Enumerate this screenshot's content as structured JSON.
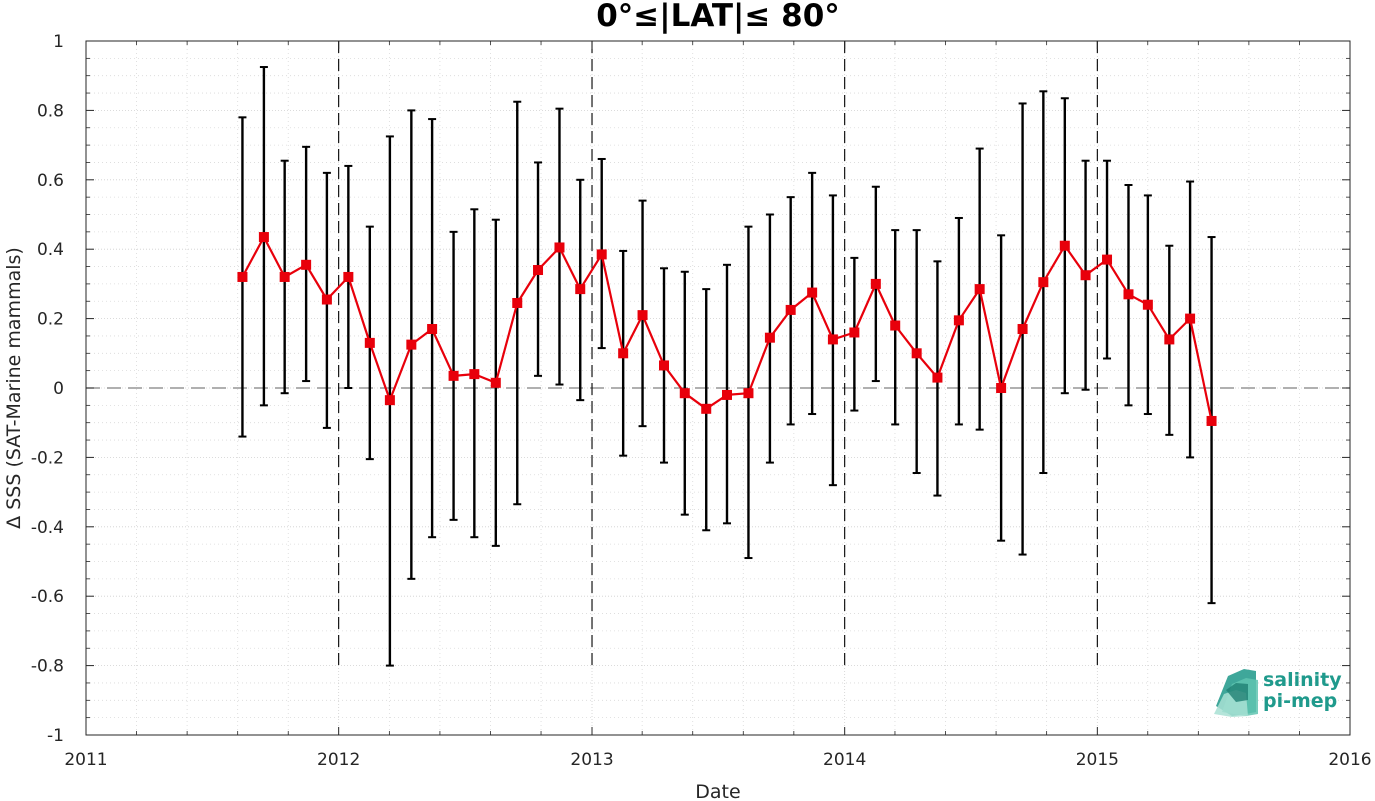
{
  "chart_data": {
    "type": "line",
    "title": "0°≤|LAT|≤ 80°",
    "xlabel": "Date",
    "ylabel": "Δ SSS (SAT-Marine mammals)",
    "xlim": [
      "2011-01-01",
      "2016-01-01"
    ],
    "ylim": [
      -1,
      1
    ],
    "x_ticks": [
      "2011",
      "2012",
      "2013",
      "2014",
      "2015",
      "2016"
    ],
    "y_ticks": [
      "1",
      "0.8",
      "0.6",
      "0.4",
      "0.2",
      "0",
      "-0.2",
      "-0.4",
      "-0.6",
      "-0.8",
      "-1"
    ],
    "grid": true,
    "minor_grid": true,
    "reference_line": 0,
    "year_separators": [
      "2012-01-01",
      "2013-01-01",
      "2014-01-01",
      "2015-01-01"
    ],
    "series": [
      {
        "color": "#e8000b",
        "marker": "square",
        "points": [
          {
            "x": "2011-08-15",
            "y": 0.32,
            "ylow": -0.14,
            "yhigh": 0.78
          },
          {
            "x": "2011-09-15",
            "y": 0.435,
            "ylow": -0.05,
            "yhigh": 0.925
          },
          {
            "x": "2011-10-15",
            "y": 0.32,
            "ylow": -0.015,
            "yhigh": 0.655
          },
          {
            "x": "2011-11-15",
            "y": 0.355,
            "ylow": 0.02,
            "yhigh": 0.695
          },
          {
            "x": "2011-12-15",
            "y": 0.255,
            "ylow": -0.115,
            "yhigh": 0.62
          },
          {
            "x": "2012-01-15",
            "y": 0.32,
            "ylow": 0.0,
            "yhigh": 0.64
          },
          {
            "x": "2012-02-15",
            "y": 0.13,
            "ylow": -0.205,
            "yhigh": 0.465
          },
          {
            "x": "2012-03-15",
            "y": -0.035,
            "ylow": -0.8,
            "yhigh": 0.725
          },
          {
            "x": "2012-04-15",
            "y": 0.125,
            "ylow": -0.55,
            "yhigh": 0.8
          },
          {
            "x": "2012-05-15",
            "y": 0.17,
            "ylow": -0.43,
            "yhigh": 0.775
          },
          {
            "x": "2012-06-15",
            "y": 0.035,
            "ylow": -0.38,
            "yhigh": 0.45
          },
          {
            "x": "2012-07-15",
            "y": 0.04,
            "ylow": -0.43,
            "yhigh": 0.515
          },
          {
            "x": "2012-08-15",
            "y": 0.015,
            "ylow": -0.455,
            "yhigh": 0.485
          },
          {
            "x": "2012-09-15",
            "y": 0.245,
            "ylow": -0.335,
            "yhigh": 0.825
          },
          {
            "x": "2012-10-15",
            "y": 0.34,
            "ylow": 0.035,
            "yhigh": 0.65
          },
          {
            "x": "2012-11-15",
            "y": 0.405,
            "ylow": 0.01,
            "yhigh": 0.805
          },
          {
            "x": "2012-12-15",
            "y": 0.285,
            "ylow": -0.035,
            "yhigh": 0.6
          },
          {
            "x": "2013-01-15",
            "y": 0.385,
            "ylow": 0.115,
            "yhigh": 0.66
          },
          {
            "x": "2013-02-15",
            "y": 0.1,
            "ylow": -0.195,
            "yhigh": 0.395
          },
          {
            "x": "2013-03-15",
            "y": 0.21,
            "ylow": -0.11,
            "yhigh": 0.54
          },
          {
            "x": "2013-04-15",
            "y": 0.065,
            "ylow": -0.215,
            "yhigh": 0.345
          },
          {
            "x": "2013-05-15",
            "y": -0.015,
            "ylow": -0.365,
            "yhigh": 0.335
          },
          {
            "x": "2013-06-15",
            "y": -0.06,
            "ylow": -0.41,
            "yhigh": 0.285
          },
          {
            "x": "2013-07-15",
            "y": -0.02,
            "ylow": -0.39,
            "yhigh": 0.355
          },
          {
            "x": "2013-08-15",
            "y": -0.015,
            "ylow": -0.49,
            "yhigh": 0.465
          },
          {
            "x": "2013-09-15",
            "y": 0.145,
            "ylow": -0.215,
            "yhigh": 0.5
          },
          {
            "x": "2013-10-15",
            "y": 0.225,
            "ylow": -0.105,
            "yhigh": 0.55
          },
          {
            "x": "2013-11-15",
            "y": 0.275,
            "ylow": -0.075,
            "yhigh": 0.62
          },
          {
            "x": "2013-12-15",
            "y": 0.14,
            "ylow": -0.28,
            "yhigh": 0.555
          },
          {
            "x": "2014-01-15",
            "y": 0.16,
            "ylow": -0.065,
            "yhigh": 0.375
          },
          {
            "x": "2014-02-15",
            "y": 0.3,
            "ylow": 0.02,
            "yhigh": 0.58
          },
          {
            "x": "2014-03-15",
            "y": 0.18,
            "ylow": -0.105,
            "yhigh": 0.455
          },
          {
            "x": "2014-04-15",
            "y": 0.1,
            "ylow": -0.245,
            "yhigh": 0.455
          },
          {
            "x": "2014-05-15",
            "y": 0.03,
            "ylow": -0.31,
            "yhigh": 0.365
          },
          {
            "x": "2014-06-15",
            "y": 0.195,
            "ylow": -0.105,
            "yhigh": 0.49
          },
          {
            "x": "2014-07-15",
            "y": 0.285,
            "ylow": -0.12,
            "yhigh": 0.69
          },
          {
            "x": "2014-08-15",
            "y": 0.0,
            "ylow": -0.44,
            "yhigh": 0.44
          },
          {
            "x": "2014-09-15",
            "y": 0.17,
            "ylow": -0.48,
            "yhigh": 0.82
          },
          {
            "x": "2014-10-15",
            "y": 0.305,
            "ylow": -0.245,
            "yhigh": 0.855
          },
          {
            "x": "2014-11-15",
            "y": 0.41,
            "ylow": -0.015,
            "yhigh": 0.835
          },
          {
            "x": "2014-12-15",
            "y": 0.325,
            "ylow": -0.005,
            "yhigh": 0.655
          },
          {
            "x": "2015-01-15",
            "y": 0.37,
            "ylow": 0.085,
            "yhigh": 0.655
          },
          {
            "x": "2015-02-15",
            "y": 0.27,
            "ylow": -0.05,
            "yhigh": 0.585
          },
          {
            "x": "2015-03-15",
            "y": 0.24,
            "ylow": -0.075,
            "yhigh": 0.555
          },
          {
            "x": "2015-04-15",
            "y": 0.14,
            "ylow": -0.135,
            "yhigh": 0.41
          },
          {
            "x": "2015-05-15",
            "y": 0.2,
            "ylow": -0.2,
            "yhigh": 0.595
          },
          {
            "x": "2015-06-15",
            "y": -0.095,
            "ylow": -0.62,
            "yhigh": 0.435
          }
        ]
      }
    ]
  },
  "logo": {
    "line1": "salinity",
    "line2": "pi-mep",
    "color": "#1f9a8c"
  }
}
